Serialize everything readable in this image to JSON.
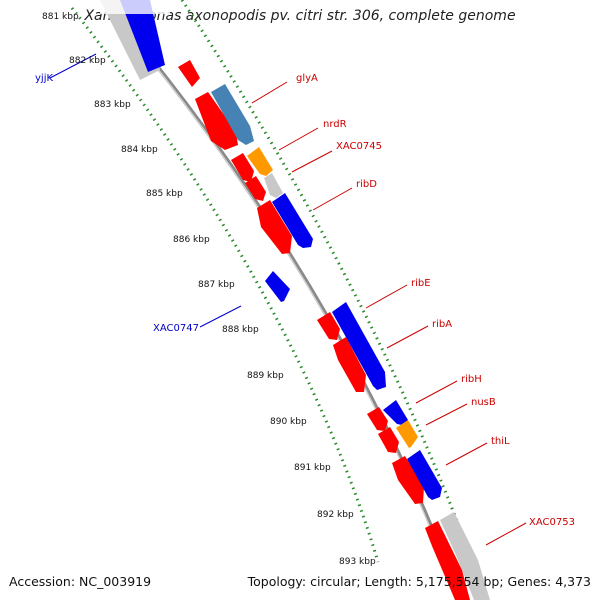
{
  "title": "Xanthomonas axonopodis pv. citri str. 306, complete genome",
  "accession": "Accession: NC_003919",
  "topology": "Topology: circular; Length: 5,175,554 bp; Genes: 4,373",
  "colors": {
    "backbone": "#8a8a8a",
    "tick_dots": "#2a8a2a",
    "label_red": "#cc0000",
    "label_blue": "#0000cc",
    "gene_red": "#ff0000",
    "gene_blue": "#0000ee",
    "gene_steel": "#4682b4",
    "gene_orange": "#ff9900",
    "gene_grey": "#c8c8c8"
  },
  "kbp_labels": [
    "881 kbp",
    "882 kbp",
    "883 kbp",
    "884 kbp",
    "885 kbp",
    "886 kbp",
    "887 kbp",
    "888 kbp",
    "889 kbp",
    "890 kbp",
    "891 kbp",
    "892 kbp",
    "893 kbp"
  ],
  "gene_labels": [
    {
      "text": "yjjK",
      "color": "blue"
    },
    {
      "text": "glyA",
      "color": "red"
    },
    {
      "text": "nrdR",
      "color": "red"
    },
    {
      "text": "XAC0745",
      "color": "red"
    },
    {
      "text": "ribD",
      "color": "red"
    },
    {
      "text": "ribE",
      "color": "red"
    },
    {
      "text": "XAC0747",
      "color": "blue"
    },
    {
      "text": "ribA",
      "color": "red"
    },
    {
      "text": "ribH",
      "color": "red"
    },
    {
      "text": "nusB",
      "color": "red"
    },
    {
      "text": "thiL",
      "color": "red"
    },
    {
      "text": "XAC0753",
      "color": "red"
    }
  ]
}
